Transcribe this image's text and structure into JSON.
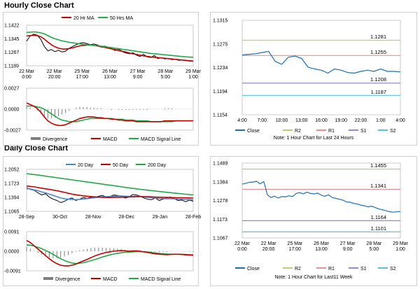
{
  "sections": {
    "hourly_title": "Hourly Close Chart",
    "daily_title": "Daily Close Chart"
  },
  "colors": {
    "close": "#1f6fb2",
    "ma_short": "#c00000",
    "ma_long": "#22a84a",
    "r2": "#b8cf73",
    "r1": "#e79292",
    "s1": "#9b86c8",
    "s2": "#5bc3d6",
    "divergence": "#7f7f7f",
    "axis": "#bfbfbf"
  },
  "chart_data": [
    {
      "id": "hourly-price",
      "type": "line",
      "legend": [
        "20 Hr MA",
        "50 Hrs MA"
      ],
      "ylim": [
        1.1189,
        1.1422
      ],
      "yticks": [
        "1.1422",
        "1.1345",
        "1.1267",
        "1.1189"
      ],
      "xticks": [
        [
          "22 Mar",
          "0:00"
        ],
        [
          "22 Mar",
          "20:00"
        ],
        [
          "25 Mar",
          "17:00"
        ],
        [
          "26 Mar",
          "13:00"
        ],
        [
          "27 Mar",
          "9:00"
        ],
        [
          "28 Mar",
          "5:00"
        ],
        [
          "29 Mar",
          "1:00"
        ]
      ],
      "series": [
        {
          "name": "Close",
          "values": [
            1.133,
            1.136,
            1.137,
            1.1365,
            1.134,
            1.13,
            1.1275,
            1.1282,
            1.127,
            1.1278,
            1.1268,
            1.1272,
            1.129,
            1.13,
            1.131,
            1.1318,
            1.1322,
            1.1316,
            1.131,
            1.1314,
            1.1308,
            1.13,
            1.1302,
            1.1296,
            1.1288,
            1.1276,
            1.1285,
            1.127,
            1.1262,
            1.1258,
            1.1264,
            1.125,
            1.1242,
            1.1255,
            1.124,
            1.1236,
            1.1248,
            1.123,
            1.1236,
            1.1228,
            1.1232,
            1.1224,
            1.1226,
            1.122,
            1.1222,
            1.1218,
            1.1216,
            1.1214
          ]
        },
        {
          "name": "20 Hr MA",
          "values": [
            1.136,
            1.1362,
            1.1364,
            1.1362,
            1.1356,
            1.1342,
            1.1325,
            1.131,
            1.1298,
            1.129,
            1.1286,
            1.1285,
            1.1288,
            1.1292,
            1.1298,
            1.1303,
            1.1306,
            1.1308,
            1.1308,
            1.1306,
            1.1302,
            1.1298,
            1.1295,
            1.129,
            1.1286,
            1.1282,
            1.1276,
            1.1272,
            1.1268,
            1.1262,
            1.1258,
            1.1254,
            1.125,
            1.1246,
            1.1243,
            1.124,
            1.1238,
            1.1236,
            1.1234,
            1.1232,
            1.123,
            1.1228,
            1.1226,
            1.1224,
            1.1222,
            1.122,
            1.1218,
            1.1216
          ]
        },
        {
          "name": "50 Hrs MA",
          "values": [
            1.138,
            1.1382,
            1.1384,
            1.1382,
            1.1378,
            1.1372,
            1.1362,
            1.1352,
            1.1344,
            1.1338,
            1.1332,
            1.1328,
            1.1324,
            1.1321,
            1.1318,
            1.1315,
            1.1312,
            1.131,
            1.1308,
            1.1306,
            1.1304,
            1.1302,
            1.1299,
            1.1296,
            1.1293,
            1.129,
            1.1287,
            1.1284,
            1.1281,
            1.1278,
            1.1275,
            1.1272,
            1.1269,
            1.1266,
            1.1263,
            1.126,
            1.1258,
            1.1256,
            1.1254,
            1.1252,
            1.125,
            1.1248,
            1.1246,
            1.1244,
            1.1242,
            1.124,
            1.1239,
            1.1238
          ]
        }
      ]
    },
    {
      "id": "hourly-macd",
      "type": "line",
      "legend": [
        "Divergence",
        "MACD",
        "MACD Signal Line"
      ],
      "ylim": [
        -0.0027,
        0.0027
      ],
      "yticks": [
        "0.0027",
        "0.0000",
        "-0.0027"
      ],
      "series": [
        {
          "name": "MACD",
          "values": [
            0.0008,
            0.0006,
            0.0004,
            0.0001,
            -0.0004,
            -0.001,
            -0.0015,
            -0.0018,
            -0.002,
            -0.0021,
            -0.0021,
            -0.002,
            -0.0018,
            -0.0016,
            -0.0014,
            -0.0012,
            -0.0011,
            -0.001,
            -0.001,
            -0.001,
            -0.0011,
            -0.0011,
            -0.0012,
            -0.0012,
            -0.0013,
            -0.0013,
            -0.0014,
            -0.0014,
            -0.0015,
            -0.0015,
            -0.0015,
            -0.0016,
            -0.0016,
            -0.0016,
            -0.0016,
            -0.0016,
            -0.0016,
            -0.0016,
            -0.0016,
            -0.0015,
            -0.0015,
            -0.0015,
            -0.0015,
            -0.0015,
            -0.0015,
            -0.0015,
            -0.0015,
            -0.0015
          ]
        },
        {
          "name": "MACD Signal Line",
          "values": [
            0.0004,
            0.0004,
            0.0004,
            0.0003,
            0.0002,
            0.0,
            -0.0003,
            -0.0006,
            -0.0009,
            -0.0012,
            -0.0014,
            -0.0015,
            -0.0016,
            -0.0016,
            -0.0016,
            -0.0015,
            -0.0014,
            -0.0013,
            -0.0012,
            -0.0012,
            -0.0012,
            -0.0012,
            -0.0012,
            -0.0012,
            -0.0012,
            -0.0013,
            -0.0013,
            -0.0013,
            -0.0014,
            -0.0014,
            -0.0014,
            -0.0015,
            -0.0015,
            -0.0015,
            -0.0015,
            -0.0016,
            -0.0016,
            -0.0016,
            -0.0016,
            -0.0016,
            -0.0016,
            -0.0016,
            -0.0015,
            -0.0015,
            -0.0015,
            -0.0015,
            -0.0015,
            -0.0015
          ]
        },
        {
          "name": "Divergence",
          "values": [
            0.0004,
            0.0002,
            0.0,
            -0.0002,
            -0.0006,
            -0.001,
            -0.0012,
            -0.0012,
            -0.0011,
            -0.0009,
            -0.0007,
            -0.0005,
            -0.0002,
            0.0,
            0.0002,
            0.0003,
            0.0003,
            0.0003,
            0.0002,
            0.0002,
            0.0001,
            0.0001,
            0.0,
            0.0,
            -0.0001,
            0.0,
            -0.0001,
            -0.0001,
            -0.0001,
            -0.0001,
            -0.0001,
            -0.0001,
            -0.0001,
            -0.0001,
            -0.0001,
            0.0,
            0.0,
            0.0,
            0.0,
            0.0001,
            0.0001,
            0.0001,
            0.0,
            0.0,
            0.0,
            0.0,
            0.0,
            0.0
          ]
        }
      ]
    },
    {
      "id": "hourly-sr",
      "type": "line",
      "ylim": [
        1.1154,
        1.1315
      ],
      "yticks": [
        "1.1315",
        "1.1275",
        "1.1234",
        "1.1194",
        "1.1154"
      ],
      "xticks": [
        "4:00",
        "7:00",
        "10:00",
        "13:00",
        "16:00",
        "19:00",
        "22:00",
        "1:00",
        "4:00"
      ],
      "levels": [
        {
          "name": "R2",
          "value": 1.1281,
          "label": "1.1281"
        },
        {
          "name": "R1",
          "value": 1.1255,
          "label": "1.1255"
        },
        {
          "name": "S1",
          "value": 1.1208,
          "label": "1.1208"
        },
        {
          "name": "S2",
          "value": 1.1187,
          "label": "1.1187"
        }
      ],
      "legend": [
        "Close",
        "R2",
        "R1",
        "S1",
        "S2"
      ],
      "note": "Note: 1 Hour Chart for Last 24 Hours",
      "series": [
        {
          "name": "Close",
          "values": [
            1.1256,
            1.1257,
            1.1258,
            1.126,
            1.1262,
            1.1245,
            1.124,
            1.1252,
            1.1254,
            1.125,
            1.1235,
            1.1232,
            1.123,
            1.1225,
            1.1232,
            1.123,
            1.1226,
            1.1225,
            1.1228,
            1.123,
            1.1228,
            1.1232,
            1.1228,
            1.1228,
            1.1227
          ]
        }
      ]
    },
    {
      "id": "daily-price",
      "type": "line",
      "legend": [
        "20 Day",
        "50 Day",
        "200 Day"
      ],
      "ylim": [
        1.1065,
        1.2052
      ],
      "yticks": [
        "1.2052",
        "1.1723",
        "1.1394",
        "1.1065"
      ],
      "xticks": [
        "28-Sep",
        "30-Oct",
        "28-Nov",
        "28-Dec",
        "29-Jan",
        "28-Feb"
      ],
      "series": [
        {
          "name": "Close",
          "values": [
            1.162,
            1.158,
            1.156,
            1.15,
            1.145,
            1.148,
            1.14,
            1.135,
            1.132,
            1.127,
            1.13,
            1.135,
            1.138,
            1.132,
            1.135,
            1.139,
            1.137,
            1.14,
            1.138,
            1.142,
            1.144,
            1.14,
            1.141,
            1.145,
            1.144,
            1.142,
            1.138,
            1.14,
            1.146,
            1.145,
            1.142,
            1.138,
            1.135,
            1.134,
            1.138,
            1.132,
            1.135,
            1.138,
            1.14,
            1.136,
            1.132,
            1.133,
            1.129,
            1.133,
            1.13
          ]
        },
        {
          "name": "20 Day",
          "values": [
            1.16,
            1.159,
            1.157,
            1.155,
            1.152,
            1.15,
            1.147,
            1.144,
            1.141,
            1.138,
            1.136,
            1.135,
            1.1345,
            1.134,
            1.1345,
            1.1355,
            1.1365,
            1.1375,
            1.1385,
            1.1395,
            1.1405,
            1.141,
            1.1415,
            1.142,
            1.1425,
            1.1425,
            1.142,
            1.1415,
            1.1415,
            1.1418,
            1.1415,
            1.1405,
            1.1395,
            1.1385,
            1.1378,
            1.137,
            1.1365,
            1.1362,
            1.1362,
            1.136,
            1.1355,
            1.135,
            1.1345,
            1.134,
            1.1335
          ]
        },
        {
          "name": "50 Day",
          "values": [
            1.166,
            1.165,
            1.164,
            1.1625,
            1.161,
            1.1595,
            1.158,
            1.1565,
            1.155,
            1.153,
            1.151,
            1.149,
            1.147,
            1.1455,
            1.144,
            1.143,
            1.142,
            1.1412,
            1.1405,
            1.14,
            1.1395,
            1.1392,
            1.139,
            1.1392,
            1.1395,
            1.1398,
            1.14,
            1.1402,
            1.1405,
            1.1408,
            1.141,
            1.141,
            1.1408,
            1.1405,
            1.1402,
            1.1398,
            1.1395,
            1.1392,
            1.139,
            1.1388,
            1.1386,
            1.1384,
            1.1382,
            1.138,
            1.1378
          ]
        },
        {
          "name": "200 Day",
          "values": [
            1.195,
            1.194,
            1.193,
            1.1918,
            1.1905,
            1.1892,
            1.188,
            1.1868,
            1.1855,
            1.1842,
            1.183,
            1.1818,
            1.1805,
            1.1792,
            1.178,
            1.1768,
            1.1755,
            1.1742,
            1.173,
            1.1718,
            1.1705,
            1.1692,
            1.168,
            1.1668,
            1.1655,
            1.1642,
            1.163,
            1.1618,
            1.1605,
            1.1594,
            1.1583,
            1.1572,
            1.1562,
            1.1552,
            1.1542,
            1.1532,
            1.1522,
            1.1513,
            1.1504,
            1.1495,
            1.1486,
            1.1477,
            1.1468,
            1.146,
            1.1452
          ]
        }
      ]
    },
    {
      "id": "daily-macd",
      "type": "line",
      "legend": [
        "Divergence",
        "MACD",
        "MACD Signal Line"
      ],
      "ylim": [
        -0.0091,
        0.0091
      ],
      "yticks": [
        "0.0091",
        "0.0000",
        "-0.0091"
      ],
      "series": [
        {
          "name": "MACD",
          "values": [
            0.005,
            0.004,
            0.0025,
            0.001,
            -0.0005,
            -0.002,
            -0.0035,
            -0.0048,
            -0.0058,
            -0.0065,
            -0.0068,
            -0.0068,
            -0.0065,
            -0.006,
            -0.0052,
            -0.0045,
            -0.0038,
            -0.003,
            -0.0022,
            -0.0016,
            -0.001,
            -0.0006,
            -0.0003,
            0.0,
            0.0002,
            0.0003,
            0.0002,
            0.0,
            0.0001,
            0.0002,
            0.0,
            -0.0003,
            -0.0006,
            -0.0009,
            -0.0012,
            -0.0014,
            -0.0015,
            -0.0016,
            -0.0015,
            -0.0014,
            -0.0014,
            -0.0015,
            -0.0017,
            -0.0018,
            -0.0019
          ]
        },
        {
          "name": "MACD Signal Line",
          "values": [
            0.003,
            0.0028,
            0.0024,
            0.0018,
            0.0012,
            0.0004,
            -0.0005,
            -0.0015,
            -0.0025,
            -0.0035,
            -0.0043,
            -0.005,
            -0.0055,
            -0.0057,
            -0.0056,
            -0.0053,
            -0.0049,
            -0.0044,
            -0.0039,
            -0.0033,
            -0.0027,
            -0.0022,
            -0.0017,
            -0.0013,
            -0.001,
            -0.0007,
            -0.0005,
            -0.0004,
            -0.0003,
            -0.0002,
            -0.0002,
            -0.0003,
            -0.0004,
            -0.0006,
            -0.0008,
            -0.001,
            -0.0012,
            -0.0013,
            -0.0014,
            -0.0014,
            -0.0014,
            -0.0015,
            -0.0015,
            -0.0016,
            -0.0017
          ]
        },
        {
          "name": "Divergence",
          "values": [
            0.002,
            0.0012,
            0.0001,
            -0.0008,
            -0.0017,
            -0.0024,
            -0.003,
            -0.0033,
            -0.0033,
            -0.003,
            -0.0025,
            -0.0018,
            -0.001,
            -0.0003,
            0.0004,
            0.0008,
            0.0011,
            0.0014,
            0.0017,
            0.0017,
            0.0017,
            0.0016,
            0.0014,
            0.0013,
            0.0012,
            0.001,
            0.0007,
            0.0004,
            0.0004,
            0.0004,
            0.0002,
            0.0,
            -0.0002,
            -0.0003,
            -0.0004,
            -0.0004,
            -0.0003,
            -0.0003,
            -0.0001,
            0.0,
            0.0,
            0.0,
            -0.0002,
            -0.0002,
            -0.0002
          ]
        }
      ]
    },
    {
      "id": "daily-sr",
      "type": "line",
      "ylim": [
        1.1067,
        1.1489
      ],
      "yticks": [
        "1.1489",
        "1.1384",
        "1.1278",
        "1.1173",
        "1.1067"
      ],
      "xticks": [
        [
          "22 Mar",
          "0:00"
        ],
        [
          "22 Mar",
          "20:00"
        ],
        [
          "25 Mar",
          "17:00"
        ],
        [
          "26 Mar",
          "13:00"
        ],
        [
          "27 Mar",
          "9:00"
        ],
        [
          "28 Mar",
          "5:00"
        ],
        [
          "29 Mar",
          "1:00"
        ]
      ],
      "levels": [
        {
          "name": "R2",
          "value": 1.1455,
          "label": "1.1455"
        },
        {
          "name": "R1",
          "value": 1.1341,
          "label": "1.1341"
        },
        {
          "name": "S1",
          "value": 1.1164,
          "label": "1.1164"
        },
        {
          "name": "S2",
          "value": 1.1101,
          "label": "1.1101"
        }
      ],
      "legend": [
        "Close",
        "R2",
        "R1",
        "S1",
        "S2"
      ],
      "note": "Note: 1 Hour Chart for Last11 Week",
      "series": [
        {
          "name": "Close",
          "values": [
            1.137,
            1.1375,
            1.138,
            1.1382,
            1.1386,
            1.1372,
            1.1385,
            1.131,
            1.1295,
            1.1302,
            1.1292,
            1.13,
            1.1298,
            1.1305,
            1.13,
            1.1318,
            1.1322,
            1.1316,
            1.1325,
            1.1318,
            1.1315,
            1.132,
            1.1308,
            1.1302,
            1.131,
            1.1295,
            1.129,
            1.1285,
            1.128,
            1.127,
            1.1268,
            1.1262,
            1.1258,
            1.1252,
            1.1248,
            1.1242,
            1.1246,
            1.1238,
            1.123,
            1.1226,
            1.122,
            1.1215,
            1.1212,
            1.1214,
            1.1216
          ]
        }
      ]
    }
  ]
}
